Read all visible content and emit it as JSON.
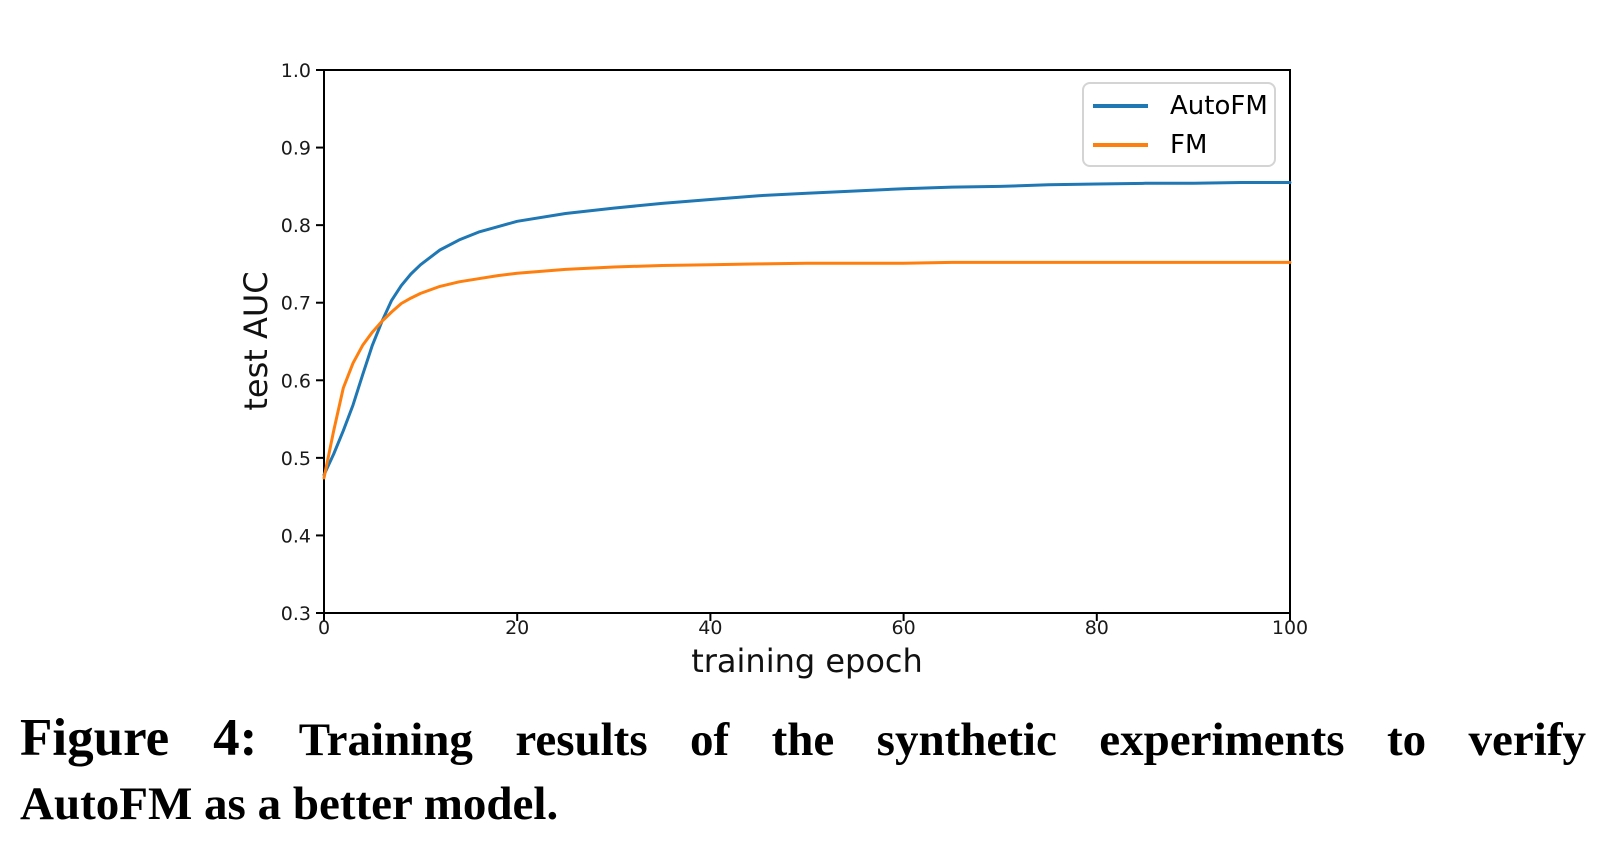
{
  "chart_data": {
    "type": "line",
    "title": "",
    "xlabel": "training epoch",
    "ylabel": "test AUC",
    "xlim": [
      0,
      100
    ],
    "ylim": [
      0.3,
      1.0
    ],
    "xticks": [
      0,
      20,
      40,
      60,
      80,
      100
    ],
    "xtick_labels": [
      "0",
      "20",
      "40",
      "60",
      "80",
      "100"
    ],
    "yticks": [
      0.3,
      0.4,
      0.5,
      0.6,
      0.7,
      0.8,
      0.9,
      1.0
    ],
    "ytick_labels": [
      "0.3",
      "0.4",
      "0.5",
      "0.6",
      "0.7",
      "0.8",
      "0.9",
      "1.0"
    ],
    "grid": false,
    "legend_position": "upper right",
    "frame_color": "#000000",
    "x": [
      0,
      1,
      2,
      3,
      4,
      5,
      6,
      7,
      8,
      9,
      10,
      12,
      14,
      16,
      18,
      20,
      25,
      30,
      35,
      40,
      45,
      50,
      55,
      60,
      65,
      70,
      75,
      80,
      85,
      90,
      95,
      100
    ],
    "series": [
      {
        "name": "AutoFM",
        "color": "#1f77b4",
        "y": [
          0.478,
          0.505,
          0.535,
          0.568,
          0.607,
          0.645,
          0.676,
          0.703,
          0.722,
          0.737,
          0.749,
          0.768,
          0.781,
          0.791,
          0.798,
          0.805,
          0.815,
          0.822,
          0.828,
          0.833,
          0.838,
          0.841,
          0.844,
          0.847,
          0.849,
          0.85,
          0.852,
          0.853,
          0.854,
          0.854,
          0.855,
          0.855
        ]
      },
      {
        "name": "FM",
        "color": "#ff7f0e",
        "y": [
          0.474,
          0.535,
          0.59,
          0.622,
          0.645,
          0.662,
          0.676,
          0.688,
          0.699,
          0.706,
          0.712,
          0.721,
          0.727,
          0.731,
          0.735,
          0.738,
          0.743,
          0.746,
          0.748,
          0.749,
          0.75,
          0.751,
          0.751,
          0.751,
          0.752,
          0.752,
          0.752,
          0.752,
          0.752,
          0.752,
          0.752,
          0.752
        ]
      }
    ]
  },
  "caption": {
    "fig_label": "Figure 4:",
    "line1_text": "Training results of the synthetic experiments to verify",
    "line2_text": "AutoFM as a better model."
  }
}
